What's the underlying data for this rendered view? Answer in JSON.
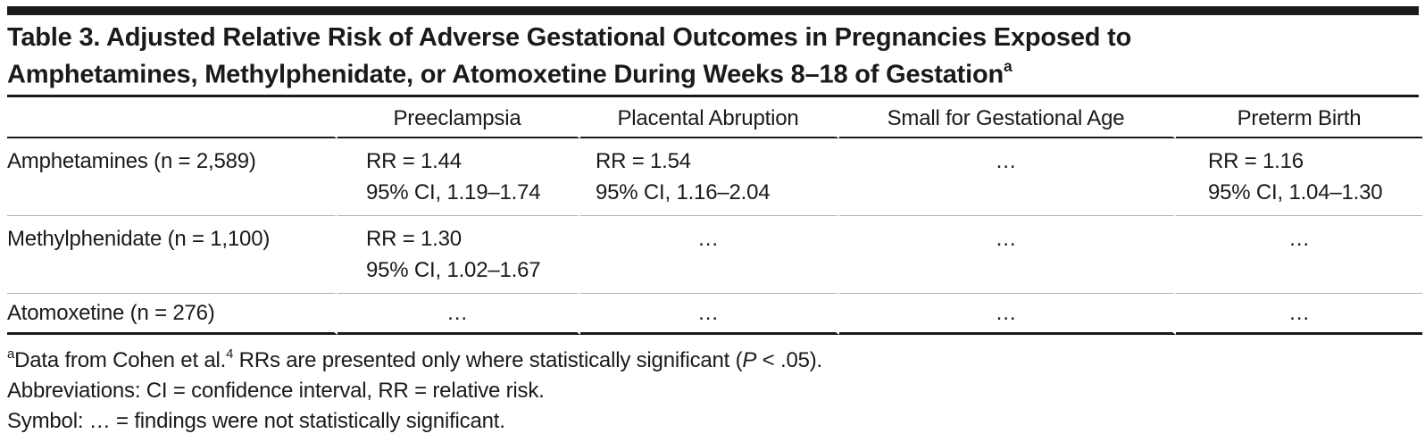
{
  "title": {
    "line1": "Table 3. Adjusted Relative Risk of Adverse Gestational Outcomes in Pregnancies Exposed to",
    "line2": "Amphetamines, Methylphenidate, or Atomoxetine During Weeks 8–18 of Gestation",
    "superscript": "a"
  },
  "table": {
    "columns": [
      "",
      "Preeclampsia",
      "Placental Abruption",
      "Small for Gestational Age",
      "Preterm Birth"
    ],
    "rows": [
      {
        "label": "Amphetamines (n = 2,589)",
        "cells": [
          {
            "rr": "RR = 1.44",
            "ci": "95% CI, 1.19–1.74"
          },
          {
            "rr": "RR = 1.54",
            "ci": "95% CI, 1.16–2.04"
          },
          {
            "sym": "…"
          },
          {
            "rr": "RR = 1.16",
            "ci": "95% CI, 1.04–1.30"
          }
        ]
      },
      {
        "label": "Methylphenidate (n = 1,100)",
        "cells": [
          {
            "rr": "RR = 1.30",
            "ci": "95% CI, 1.02–1.67"
          },
          {
            "sym": "…"
          },
          {
            "sym": "…"
          },
          {
            "sym": "…"
          }
        ]
      },
      {
        "label": "Atomoxetine (n = 276)",
        "cells": [
          {
            "sym": "…"
          },
          {
            "sym": "…"
          },
          {
            "sym": "…"
          },
          {
            "sym": "…"
          }
        ]
      }
    ]
  },
  "footnotes": {
    "note_a": {
      "marker": "a",
      "pre": "Data from Cohen et al.",
      "ref": "4",
      "mid": " RRs are presented only where statistically significant (",
      "p": "P",
      "post": " < .05)."
    },
    "abbreviations": "Abbreviations: CI = confidence interval, RR = relative risk.",
    "symbol": "Symbol: … = findings were not statistically significant."
  }
}
